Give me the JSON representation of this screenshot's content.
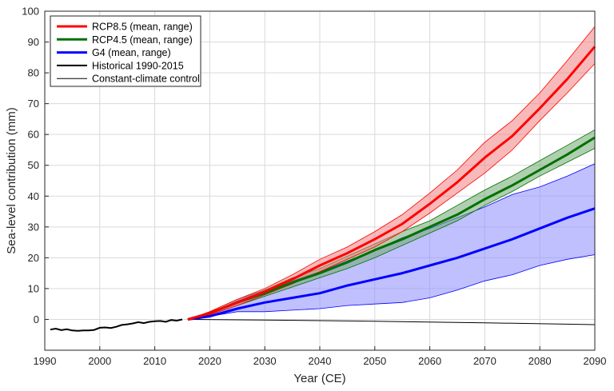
{
  "chart_data": {
    "type": "line",
    "title": "",
    "xlabel": "Year (CE)",
    "ylabel": "Sea-level contribution (mm)",
    "xlim": [
      1990,
      2090
    ],
    "ylim": [
      -10,
      100
    ],
    "xticks": [
      1990,
      2000,
      2010,
      2020,
      2030,
      2040,
      2050,
      2060,
      2070,
      2080,
      2090
    ],
    "yticks": [
      0,
      10,
      20,
      30,
      40,
      50,
      60,
      70,
      80,
      90,
      100
    ],
    "grid": true,
    "legend_position": "top-left",
    "series": [
      {
        "name": "RCP8.5 (mean, range)",
        "color": "#ff0000",
        "fill": "#f08080",
        "x": [
          2016,
          2020,
          2025,
          2030,
          2035,
          2040,
          2045,
          2050,
          2055,
          2060,
          2065,
          2070,
          2075,
          2080,
          2085,
          2090
        ],
        "mean": [
          0,
          2.0,
          5.5,
          9.0,
          13.0,
          17.5,
          21.5,
          26.0,
          31.0,
          37.5,
          44.5,
          52.5,
          59.5,
          68.5,
          78.0,
          88.5
        ],
        "lower": [
          0,
          1.5,
          4.5,
          8.0,
          11.5,
          15.5,
          19.5,
          23.5,
          28.5,
          34.5,
          41.0,
          47.5,
          55.0,
          64.5,
          73.5,
          83.0
        ],
        "upper": [
          0,
          2.5,
          6.5,
          10.0,
          14.5,
          19.5,
          23.5,
          28.5,
          34.0,
          41.0,
          48.5,
          57.5,
          64.5,
          73.5,
          84.0,
          95.0
        ]
      },
      {
        "name": "RCP4.5 (mean, range)",
        "color": "#007000",
        "fill": "#6fa86f",
        "x": [
          2016,
          2020,
          2025,
          2030,
          2035,
          2040,
          2045,
          2050,
          2055,
          2060,
          2065,
          2070,
          2075,
          2080,
          2085,
          2090
        ],
        "mean": [
          0,
          2.0,
          5.5,
          8.5,
          12.0,
          15.0,
          18.5,
          22.5,
          26.0,
          30.0,
          34.0,
          39.0,
          43.5,
          48.5,
          53.5,
          59.0
        ],
        "lower": [
          0,
          1.5,
          4.5,
          7.5,
          10.5,
          13.5,
          16.5,
          20.0,
          24.0,
          28.0,
          32.0,
          37.0,
          41.5,
          46.5,
          51.0,
          55.5
        ],
        "upper": [
          0,
          2.5,
          6.5,
          9.5,
          13.5,
          16.5,
          20.5,
          24.5,
          28.5,
          32.0,
          37.0,
          42.0,
          46.5,
          51.5,
          56.5,
          61.5
        ]
      },
      {
        "name": "G4 (mean, range)",
        "color": "#0000ff",
        "fill": "#8c8cff",
        "x": [
          2016,
          2020,
          2025,
          2030,
          2035,
          2040,
          2045,
          2050,
          2055,
          2060,
          2065,
          2070,
          2075,
          2080,
          2085,
          2090
        ],
        "mean": [
          0,
          1.0,
          3.5,
          5.5,
          7.0,
          8.5,
          11.0,
          13.0,
          15.0,
          17.5,
          20.0,
          23.0,
          26.0,
          29.5,
          33.0,
          36.0
        ],
        "lower": [
          0,
          1.0,
          2.5,
          2.5,
          3.0,
          3.5,
          4.5,
          5.0,
          5.5,
          7.0,
          9.5,
          12.5,
          14.5,
          17.5,
          19.5,
          21.0
        ],
        "upper": [
          0,
          2.0,
          6.0,
          9.5,
          12.5,
          15.5,
          19.0,
          22.5,
          26.5,
          29.5,
          33.0,
          36.5,
          40.5,
          43.0,
          46.5,
          50.5
        ]
      },
      {
        "name": "Historical 1990-2015",
        "color": "#000000",
        "x": [
          1991,
          1992,
          1993,
          1994,
          1995,
          1996,
          1997,
          1998,
          1999,
          2000,
          2001,
          2002,
          2003,
          2004,
          2005,
          2006,
          2007,
          2008,
          2009,
          2010,
          2011,
          2012,
          2013,
          2014,
          2015
        ],
        "y": [
          -3.3,
          -3.0,
          -3.5,
          -3.2,
          -3.6,
          -3.7,
          -3.6,
          -3.6,
          -3.4,
          -2.7,
          -2.6,
          -2.8,
          -2.4,
          -1.8,
          -1.6,
          -1.3,
          -0.9,
          -1.2,
          -0.8,
          -0.6,
          -0.5,
          -0.8,
          -0.2,
          -0.4,
          0.0
        ]
      },
      {
        "name": "Constant-climate control",
        "color": "#000000",
        "x": [
          2016,
          2030,
          2050,
          2070,
          2090
        ],
        "y": [
          0,
          -0.2,
          -0.6,
          -1.1,
          -1.7
        ]
      }
    ]
  }
}
